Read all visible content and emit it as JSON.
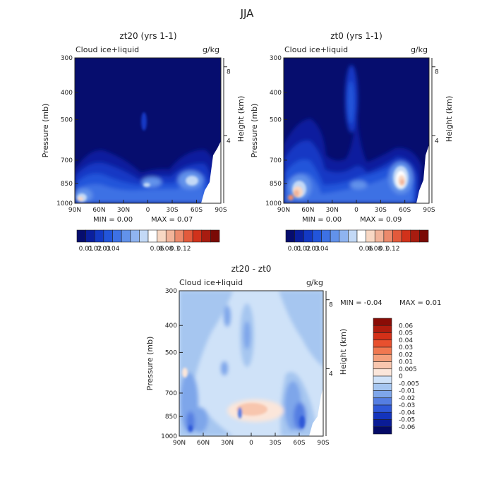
{
  "figure": {
    "title": "JJA",
    "lat_labels": [
      "90N",
      "60N",
      "30N",
      "0",
      "30S",
      "60S",
      "90S"
    ],
    "pressure_labels": [
      "300",
      "400",
      "500",
      "700",
      "850",
      "1000"
    ],
    "height_labels": [
      "8",
      "4"
    ],
    "y_label": "Pressure (mb)",
    "right_label": "Height (km)"
  },
  "chart_data": [
    {
      "type": "heatmap",
      "title": "zt20 (yrs 1-1)",
      "variable": "Cloud ice+liquid",
      "units": "g/kg",
      "xlabel": "",
      "ylabel": "Pressure (mb)",
      "xlim": [
        90,
        -90
      ],
      "ylim": [
        1000,
        300
      ],
      "min_text": "MIN =   0.00",
      "max_text": "MAX =   0.07",
      "colorbar_labels": [
        "0.01",
        "0.02",
        "0.03",
        "0.04",
        "0.06",
        "0.08",
        "0.1",
        "0.12"
      ],
      "colorbar_colors": [
        "#060d6e",
        "#0a1f9e",
        "#1339c4",
        "#2255da",
        "#3d71e4",
        "#6292ea",
        "#8fb4f0",
        "#c3d9f6",
        "#ffffff",
        "#f8d8c4",
        "#f2b49a",
        "#ec8a6c",
        "#e35a3c",
        "#d1321b",
        "#a81c10",
        "#7a0a05"
      ]
    },
    {
      "type": "heatmap",
      "title": "zt0 (yrs 1-1)",
      "variable": "Cloud ice+liquid",
      "units": "g/kg",
      "xlabel": "",
      "ylabel": "Pressure (mb)",
      "xlim": [
        90,
        -90
      ],
      "ylim": [
        1000,
        300
      ],
      "min_text": "MIN =   0.00",
      "max_text": "MAX =   0.09",
      "colorbar_labels": [
        "0.01",
        "0.02",
        "0.03",
        "0.04",
        "0.06",
        "0.08",
        "0.1",
        "0.12"
      ],
      "colorbar_colors": [
        "#060d6e",
        "#0a1f9e",
        "#1339c4",
        "#2255da",
        "#3d71e4",
        "#6292ea",
        "#8fb4f0",
        "#c3d9f6",
        "#ffffff",
        "#f8d8c4",
        "#f2b49a",
        "#ec8a6c",
        "#e35a3c",
        "#d1321b",
        "#a81c10",
        "#7a0a05"
      ]
    },
    {
      "type": "heatmap",
      "title": "zt20 - zt0",
      "variable": "Cloud ice+liquid",
      "units": "g/kg",
      "xlabel": "",
      "ylabel": "Pressure (mb)",
      "xlim": [
        90,
        -90
      ],
      "ylim": [
        1000,
        300
      ],
      "min_text": "MIN =   -0.04",
      "max_text": "MAX =   0.01",
      "colorbar_labels": [
        "0.06",
        "0.05",
        "0.04",
        "0.03",
        "0.02",
        "0.01",
        "0.005",
        "0",
        "-0.005",
        "-0.01",
        "-0.02",
        "-0.03",
        "-0.04",
        "-0.05",
        "-0.06"
      ],
      "colorbar_colors": [
        "#8a0c06",
        "#b01c0e",
        "#d43018",
        "#e8502e",
        "#f07850",
        "#f4a07c",
        "#f8c6ae",
        "#fbe6da",
        "#cfe2f8",
        "#a6c6f0",
        "#7ea6ea",
        "#557ee2",
        "#2f58d8",
        "#1434bc",
        "#0a1c96",
        "#040a66"
      ]
    }
  ]
}
